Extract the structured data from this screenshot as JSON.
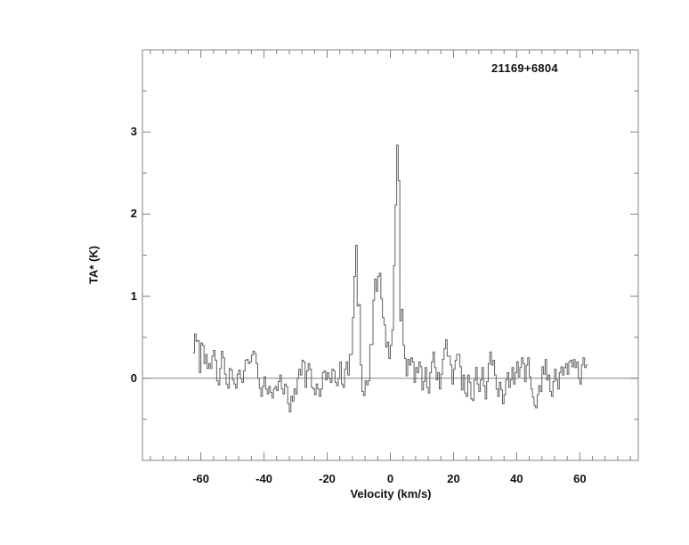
{
  "chart_data": {
    "type": "line",
    "subtype": "histogram-step-spectrum",
    "title": "21169+6804",
    "xlabel": "Velocity (km/s)",
    "ylabel": "TA* (K)",
    "xlim": [
      -78.5,
      78.5
    ],
    "ylim": [
      -1,
      4
    ],
    "x_ticks_major": [
      -60,
      -40,
      -20,
      0,
      20,
      40,
      60
    ],
    "x_tick_labels": [
      "-60",
      "-40",
      "-20",
      "0",
      "20",
      "40",
      "60"
    ],
    "x_minor_tick_step": 4,
    "y_ticks_major": [
      0,
      1,
      2,
      3
    ],
    "y_tick_labels": [
      "0",
      "1",
      "2",
      "3"
    ],
    "y_minor_tick_step": 0.5,
    "zero_line": true,
    "grid": false,
    "legend": "none",
    "line_color": "#5f5f5f",
    "axis_color": "#828282",
    "text_color": "#111111",
    "background_color": "#ffffff",
    "x_start": -62.25,
    "x_step": 0.5,
    "peaks": [
      {
        "velocity": -10.75,
        "ta": 1.62
      },
      {
        "velocity": -3.25,
        "ta": 1.28
      },
      {
        "velocity": 2.25,
        "ta": 2.84
      }
    ],
    "values": [
      0.31,
      0.54,
      0.45,
      0.46,
      0.07,
      0.43,
      0.4,
      0.18,
      0.29,
      0.12,
      0.18,
      0.12,
      0.27,
      0.34,
      0.22,
      -0.03,
      -0.08,
      0.12,
      0.33,
      0.25,
      0.05,
      -0.07,
      -0.12,
      0.12,
      0.1,
      -0.02,
      -0.07,
      -0.12,
      0.05,
      0.1,
      0.0,
      -0.05,
      0.09,
      0.22,
      0.23,
      0.18,
      0.2,
      0.28,
      0.33,
      0.3,
      0.18,
      0.0,
      -0.12,
      -0.22,
      -0.1,
      0.02,
      -0.13,
      -0.19,
      -0.1,
      -0.17,
      -0.24,
      -0.13,
      -0.1,
      -0.15,
      -0.04,
      0.04,
      -0.13,
      -0.19,
      -0.07,
      -0.1,
      -0.31,
      -0.41,
      -0.22,
      -0.28,
      -0.13,
      -0.19,
      0.0,
      0.11,
      0.04,
      0.22,
      0.2,
      -0.11,
      0.09,
      0.18,
      0.11,
      -0.11,
      -0.13,
      -0.2,
      -0.07,
      -0.13,
      -0.22,
      -0.13,
      0.07,
      0.09,
      -0.02,
      0.07,
      0.0,
      -0.05,
      0.11,
      0.09,
      -0.05,
      -0.09,
      0.0,
      0.2,
      -0.07,
      -0.11,
      0.11,
      0.2,
      0.04,
      0.29,
      0.29,
      0.74,
      1.24,
      1.62,
      0.88,
      0.9,
      0.16,
      -0.16,
      -0.21,
      -0.03,
      -0.08,
      -0.03,
      0.41,
      0.41,
      0.95,
      1.21,
      1.06,
      1.24,
      1.28,
      0.97,
      0.74,
      0.65,
      0.38,
      0.44,
      0.24,
      0.4,
      0.59,
      1.37,
      2.11,
      2.84,
      2.41,
      0.7,
      0.84,
      0.4,
      0.24,
      0.03,
      0.23,
      0.16,
      0.25,
      0.2,
      -0.05,
      0.13,
      0.07,
      0.2,
      0.14,
      -0.14,
      -0.04,
      0.13,
      -0.11,
      -0.18,
      0.07,
      0.2,
      0.32,
      0.13,
      -0.02,
      0.07,
      -0.13,
      0.05,
      0.23,
      0.36,
      0.47,
      0.27,
      0.27,
      0.16,
      -0.07,
      0.11,
      0.22,
      0.29,
      0.29,
      0.14,
      -0.14,
      0.04,
      -0.18,
      -0.22,
      0.04,
      -0.05,
      -0.25,
      -0.27,
      -0.02,
      0.13,
      -0.07,
      -0.16,
      -0.02,
      0.13,
      -0.09,
      -0.25,
      -0.04,
      0.18,
      0.32,
      0.16,
      0.22,
      0.04,
      -0.13,
      -0.22,
      -0.05,
      -0.14,
      -0.31,
      -0.2,
      -0.02,
      0.07,
      -0.11,
      -0.02,
      0.13,
      -0.07,
      0.07,
      0.2,
      0.02,
      0.13,
      0.25,
      0.18,
      -0.04,
      0.16,
      0.25,
      0.02,
      -0.13,
      -0.23,
      -0.33,
      -0.36,
      -0.2,
      -0.09,
      -0.16,
      0.14,
      0.05,
      0.23,
      -0.02,
      0.04,
      -0.16,
      -0.22,
      -0.04,
      0.11,
      -0.02,
      -0.13,
      0.07,
      0.14,
      0.04,
      0.13,
      0.18,
      0.05,
      0.2,
      0.22,
      0.14,
      0.23,
      0.13,
      0.2,
      0.0,
      -0.07,
      0.16,
      0.25,
      0.13,
      0.16
    ]
  }
}
